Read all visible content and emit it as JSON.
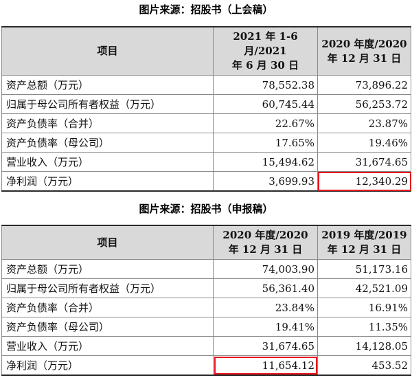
{
  "table1": {
    "caption": "图片来源：招股书（上会稿）",
    "headers": {
      "item": "项目",
      "col1_line1": "2021 年 1-6 月/2021",
      "col1_line2": "年 6 月 30 日",
      "col2_line1": "2020 年度/2020",
      "col2_line2": "年 12 月 31 日"
    },
    "rows": [
      {
        "label": "资产总额（万元）",
        "v1": "78,552.38",
        "v2": "73,896.22"
      },
      {
        "label": "归属于母公司所有者权益（万元）",
        "v1": "60,745.44",
        "v2": "56,253.72"
      },
      {
        "label": "资产负债率（合并）",
        "v1": "22.67%",
        "v2": "23.87%"
      },
      {
        "label": "资产负债率（母公司）",
        "v1": "17.65%",
        "v2": "19.46%"
      },
      {
        "label": "营业收入（万元）",
        "v1": "15,494.62",
        "v2": "31,674.65"
      },
      {
        "label": "净利润（万元）",
        "v1": "3,699.93",
        "v2": "12,340.29"
      }
    ]
  },
  "table2": {
    "caption": "图片来源：招股书（申报稿）",
    "headers": {
      "item": "项目",
      "col1_line1": "2020 年度/2020",
      "col1_line2": "年 12 月 31 日",
      "col2_line1": "2019 年度/2019",
      "col2_line2": "年 12 月 31 日"
    },
    "rows": [
      {
        "label": "资产总额（万元）",
        "v1": "74,003.90",
        "v2": "51,173.16"
      },
      {
        "label": "归属于母公司所有者权益（万元）",
        "v1": "56,361.40",
        "v2": "42,521.09"
      },
      {
        "label": "资产负债率（合并）",
        "v1": "23.84%",
        "v2": "16.91%"
      },
      {
        "label": "资产负债率（母公司）",
        "v1": "19.41%",
        "v2": "11.35%"
      },
      {
        "label": "营业收入（万元）",
        "v1": "31,674.65",
        "v2": "14,128.05"
      },
      {
        "label": "净利润（万元）",
        "v1": "11,654.12",
        "v2": "453.52"
      }
    ]
  },
  "highlight_color": "#e8141e"
}
